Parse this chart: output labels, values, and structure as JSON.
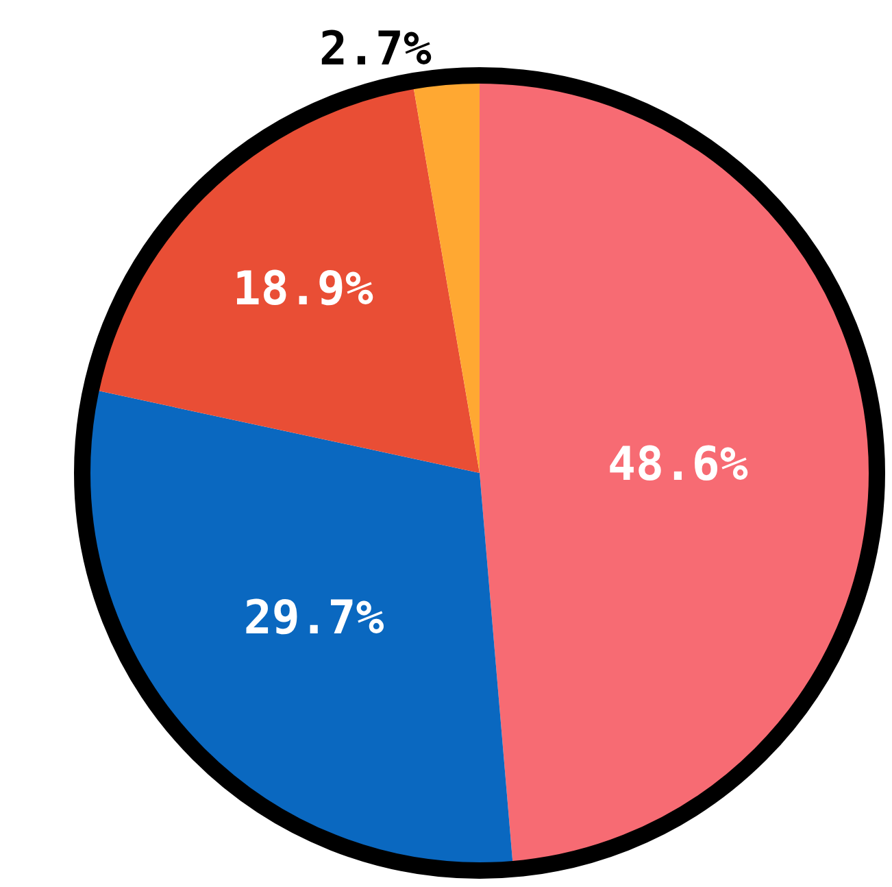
{
  "chart_data": {
    "type": "pie",
    "categories": [
      null,
      null,
      null,
      null
    ],
    "values": [
      48.6,
      29.7,
      18.9,
      2.7
    ],
    "colors": [
      "#f76b73",
      "#0a68c0",
      "#e94e35",
      "#ffa832"
    ],
    "value_labels": [
      "48.6%",
      "29.7%",
      "18.9%",
      "2.7%"
    ],
    "legend": false
  }
}
